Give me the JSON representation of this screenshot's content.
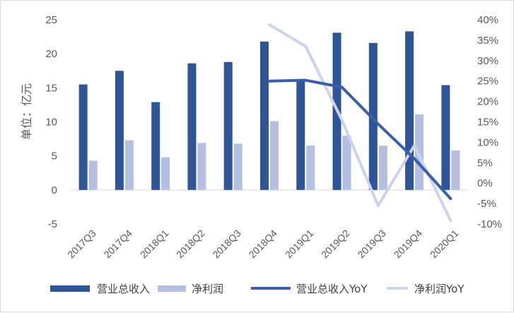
{
  "chart_data": {
    "type": "bar",
    "categories": [
      "2017Q3",
      "2017Q4",
      "2018Q1",
      "2018Q2",
      "2018Q3",
      "2018Q4",
      "2019Q1",
      "2019Q2",
      "2019Q3",
      "2019Q4",
      "2020Q1"
    ],
    "ylabel": "单位：亿元",
    "ylim": [
      -5,
      25
    ],
    "yticks": [
      "-5",
      "0",
      "5",
      "10",
      "15",
      "20",
      "25"
    ],
    "y2lim": [
      -10,
      40
    ],
    "y2ticks": [
      "-10%",
      "-5%",
      "0%",
      "5%",
      "10%",
      "15%",
      "20%",
      "25%",
      "30%",
      "35%",
      "40%"
    ],
    "grid": false,
    "legend_position": "bottom",
    "series": [
      {
        "name": "营业总收入",
        "type": "bar",
        "axis": "left",
        "color": "#2f5597",
        "values": [
          15.5,
          17.5,
          12.9,
          18.6,
          18.8,
          21.8,
          16.1,
          23.1,
          21.6,
          23.3,
          15.4
        ]
      },
      {
        "name": "净利润",
        "type": "bar",
        "axis": "left",
        "color": "#b4bfe1",
        "values": [
          4.3,
          7.3,
          4.8,
          6.9,
          6.8,
          10.1,
          6.5,
          8.0,
          6.5,
          11.1,
          5.8
        ]
      },
      {
        "name": "营业总收入YoY",
        "type": "line",
        "axis": "right",
        "color": "#3a5fa8",
        "values": [
          null,
          null,
          null,
          null,
          null,
          25.0,
          25.2,
          23.5,
          14.5,
          6.0,
          -3.8
        ]
      },
      {
        "name": "净利润YoY",
        "type": "line",
        "axis": "right",
        "color": "#ccd3ea",
        "values": [
          null,
          null,
          null,
          null,
          null,
          38.8,
          33.5,
          15.5,
          -5.5,
          9.2,
          -9.2
        ]
      }
    ]
  }
}
